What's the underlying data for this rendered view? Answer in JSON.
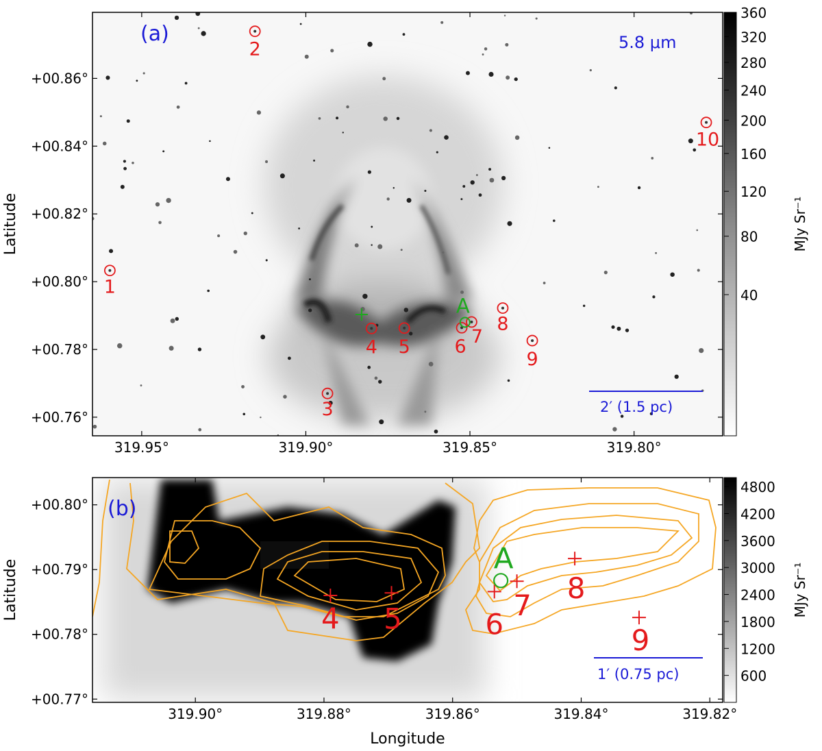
{
  "chart_data": [
    {
      "type": "heatmap",
      "panel_label": "(a)",
      "band_label": "5.8 μm",
      "xlabel": "",
      "ylabel": "Latitude",
      "xlim": [
        319.965,
        319.773
      ],
      "ylim": [
        0.7545,
        0.8795
      ],
      "x_ticks": [
        319.95,
        319.9,
        319.85,
        319.8
      ],
      "x_tick_labels": [
        "319.95°",
        "319.90°",
        "319.85°",
        "319.80°"
      ],
      "y_ticks": [
        0.76,
        0.78,
        0.8,
        0.82,
        0.84,
        0.86
      ],
      "y_tick_labels": [
        "+00.76°",
        "+00.78°",
        "+00.80°",
        "+00.82°",
        "+00.84°",
        "+00.86°"
      ],
      "colorbar": {
        "label": "MJy Sr⁻¹",
        "range": [
          0,
          360
        ],
        "ticks": [
          40,
          80,
          120,
          160,
          200,
          240,
          280,
          320,
          360
        ],
        "scale": "sqrt"
      },
      "scale_bar_label": "2′ (1.5 pc)",
      "sources": [
        {
          "id": "1",
          "x": 319.9597,
          "y": 0.8033
        },
        {
          "id": "2",
          "x": 319.9155,
          "y": 0.8739
        },
        {
          "id": "3",
          "x": 319.8934,
          "y": 0.767
        },
        {
          "id": "4",
          "x": 319.88,
          "y": 0.7862
        },
        {
          "id": "5",
          "x": 319.87,
          "y": 0.7863
        },
        {
          "id": "6",
          "x": 319.8525,
          "y": 0.7864
        },
        {
          "id": "7",
          "x": 319.8495,
          "y": 0.7881
        },
        {
          "id": "8",
          "x": 319.84,
          "y": 0.7922
        },
        {
          "id": "9",
          "x": 319.831,
          "y": 0.7826
        },
        {
          "id": "10",
          "x": 319.778,
          "y": 0.847
        }
      ],
      "marker_A": {
        "label": "A",
        "x": 319.8515,
        "y": 0.788
      },
      "green_cross": {
        "x": 319.883,
        "y": 0.7903
      }
    },
    {
      "type": "heatmap",
      "panel_label": "(b)",
      "xlabel": "Longitude",
      "ylabel": "Latitude",
      "xlim": [
        319.916,
        319.818
      ],
      "ylim": [
        0.7695,
        0.8042
      ],
      "x_ticks": [
        319.9,
        319.88,
        319.86,
        319.84,
        319.82
      ],
      "x_tick_labels": [
        "319.90°",
        "319.88°",
        "319.86°",
        "319.84°",
        "319.82°"
      ],
      "y_ticks": [
        0.77,
        0.78,
        0.79,
        0.8
      ],
      "y_tick_labels": [
        "+00.77°",
        "+00.78°",
        "+00.79°",
        "+00.80°"
      ],
      "colorbar": {
        "label": "MJy Sr⁻¹",
        "range": [
          0,
          5000
        ],
        "ticks": [
          600,
          1200,
          1800,
          2400,
          3000,
          3600,
          4200,
          4800
        ],
        "scale": "linear"
      },
      "scale_bar_label": "1′ (0.75 pc)",
      "sources": [
        {
          "id": "4",
          "x": 319.879,
          "y": 0.786
        },
        {
          "id": "5",
          "x": 319.8695,
          "y": 0.7864
        },
        {
          "id": "6",
          "x": 319.8535,
          "y": 0.7866
        },
        {
          "id": "7",
          "x": 319.85,
          "y": 0.7882
        },
        {
          "id": "8",
          "x": 319.841,
          "y": 0.7917
        },
        {
          "id": "9",
          "x": 319.831,
          "y": 0.7826
        }
      ],
      "marker_A": {
        "label": "A",
        "x": 319.8525,
        "y": 0.7883
      }
    }
  ],
  "colors": {
    "source_red": "#e41a1c",
    "marker_green": "#1fa81f",
    "annotation_blue": "#1a1ad6",
    "contour_orange": "#f5a623"
  }
}
